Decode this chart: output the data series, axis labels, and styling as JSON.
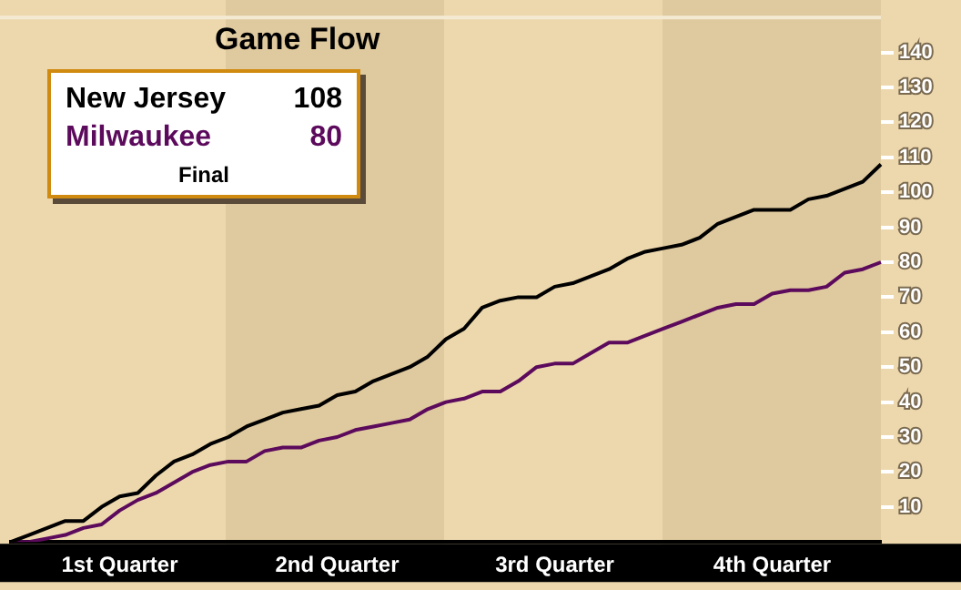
{
  "chart_data": {
    "type": "line",
    "title": "Game Flow",
    "annotations": [
      "108",
      "80",
      "Final"
    ],
    "categories": [
      null,
      null,
      null,
      null,
      null,
      null,
      "1st Quarter",
      null,
      null,
      null,
      null,
      null,
      null,
      null,
      null,
      null,
      null,
      null,
      "2nd Quarter",
      null,
      null,
      null,
      null,
      null,
      null,
      null,
      null,
      null,
      null,
      null,
      "3rd Quarter",
      null,
      null,
      null,
      null,
      null,
      null,
      null,
      null,
      null,
      null,
      null,
      "4th Quarter",
      null,
      null,
      null,
      null,
      null,
      null
    ],
    "ylim": [
      0,
      150
    ],
    "yticks": [
      10,
      20,
      30,
      40,
      50,
      60,
      70,
      80,
      90,
      100,
      110,
      120,
      130,
      140
    ],
    "grid": false,
    "legend": "top left",
    "marker": "none",
    "line_style": "solid",
    "series": [
      {
        "name": "New Jersey",
        "color": "#000000",
        "values": [
          0,
          2,
          4,
          6,
          6,
          10,
          13,
          14,
          19,
          23,
          25,
          28,
          30,
          33,
          35,
          37,
          38,
          39,
          42,
          43,
          46,
          48,
          50,
          53,
          58,
          61,
          67,
          69,
          70,
          70,
          73,
          74,
          76,
          78,
          81,
          83,
          84,
          85,
          87,
          91,
          93,
          95,
          95,
          95,
          98,
          99,
          101,
          103,
          108
        ]
      },
      {
        "name": "Milwaukee",
        "color": "#5c0a5c",
        "values": [
          0,
          0,
          1,
          2,
          4,
          5,
          9,
          12,
          14,
          17,
          20,
          22,
          23,
          23,
          26,
          27,
          27,
          29,
          30,
          32,
          33,
          34,
          35,
          38,
          40,
          41,
          43,
          43,
          46,
          50,
          51,
          51,
          54,
          57,
          57,
          59,
          61,
          63,
          65,
          67,
          68,
          68,
          71,
          72,
          72,
          73,
          77,
          78,
          80
        ]
      }
    ]
  }
}
